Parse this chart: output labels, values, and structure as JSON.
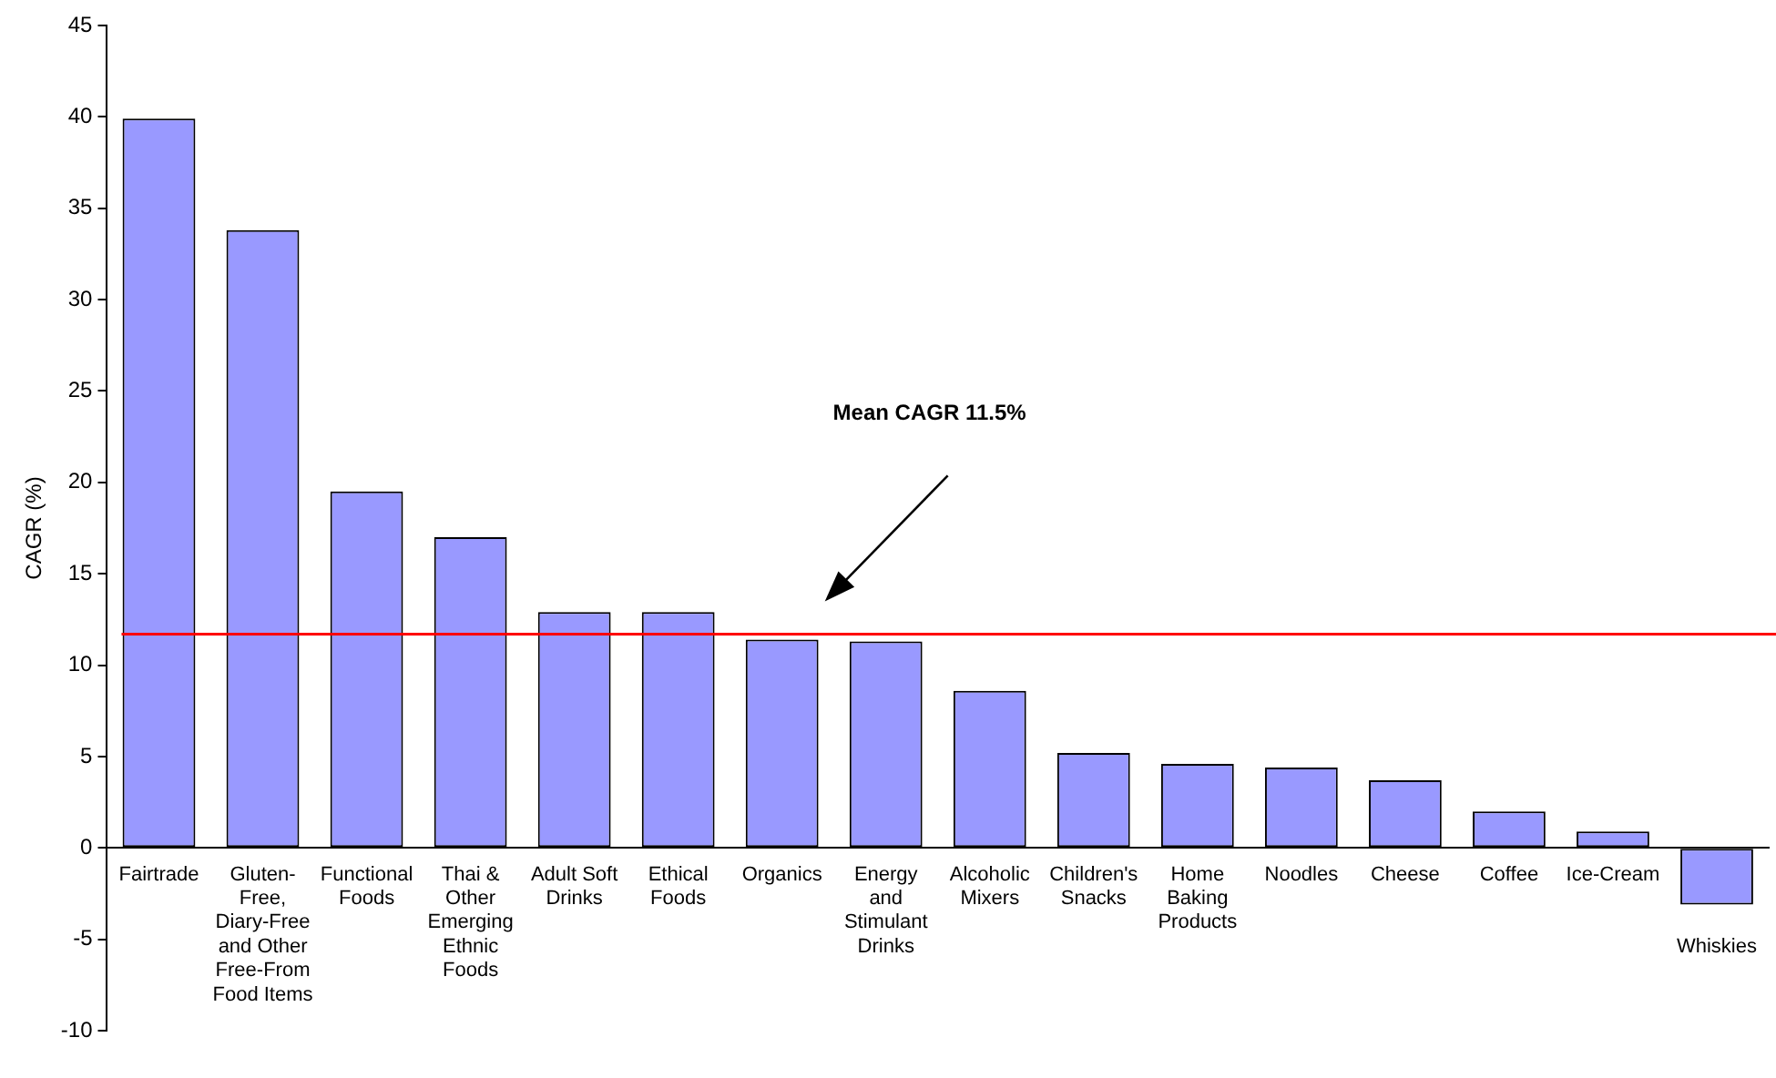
{
  "chart_data": {
    "type": "bar",
    "ylabel": "CAGR (%)",
    "categories": [
      "Fairtrade",
      "Gluten-Free, Diary-Free and Other Free-From Food Items",
      "Functional Foods",
      "Thai & Other Emerging Ethnic Foods",
      "Adult Soft Drinks",
      "Ethical Foods",
      "Organics",
      "Energy and Stimulant Drinks",
      "Alcoholic Mixers",
      "Children's Snacks",
      "Home Baking Products",
      "Noodles",
      "Cheese",
      "Coffee",
      "Ice-Cream",
      "Whiskies"
    ],
    "values": [
      39.9,
      33.8,
      19.5,
      17.0,
      12.9,
      12.9,
      11.4,
      11.3,
      8.6,
      5.2,
      4.6,
      4.4,
      3.7,
      2.0,
      0.9,
      -3.1
    ],
    "color": "#9999ff",
    "ylim": [
      -10,
      45
    ],
    "yticks": [
      -10,
      -5,
      0,
      5,
      10,
      15,
      20,
      25,
      30,
      35,
      40,
      45
    ],
    "annotations": [
      "Mean CAGR 11.5%"
    ],
    "ref_lines": [
      {
        "axis": "y",
        "value": 11.7,
        "color": "#ff0000"
      }
    ]
  }
}
